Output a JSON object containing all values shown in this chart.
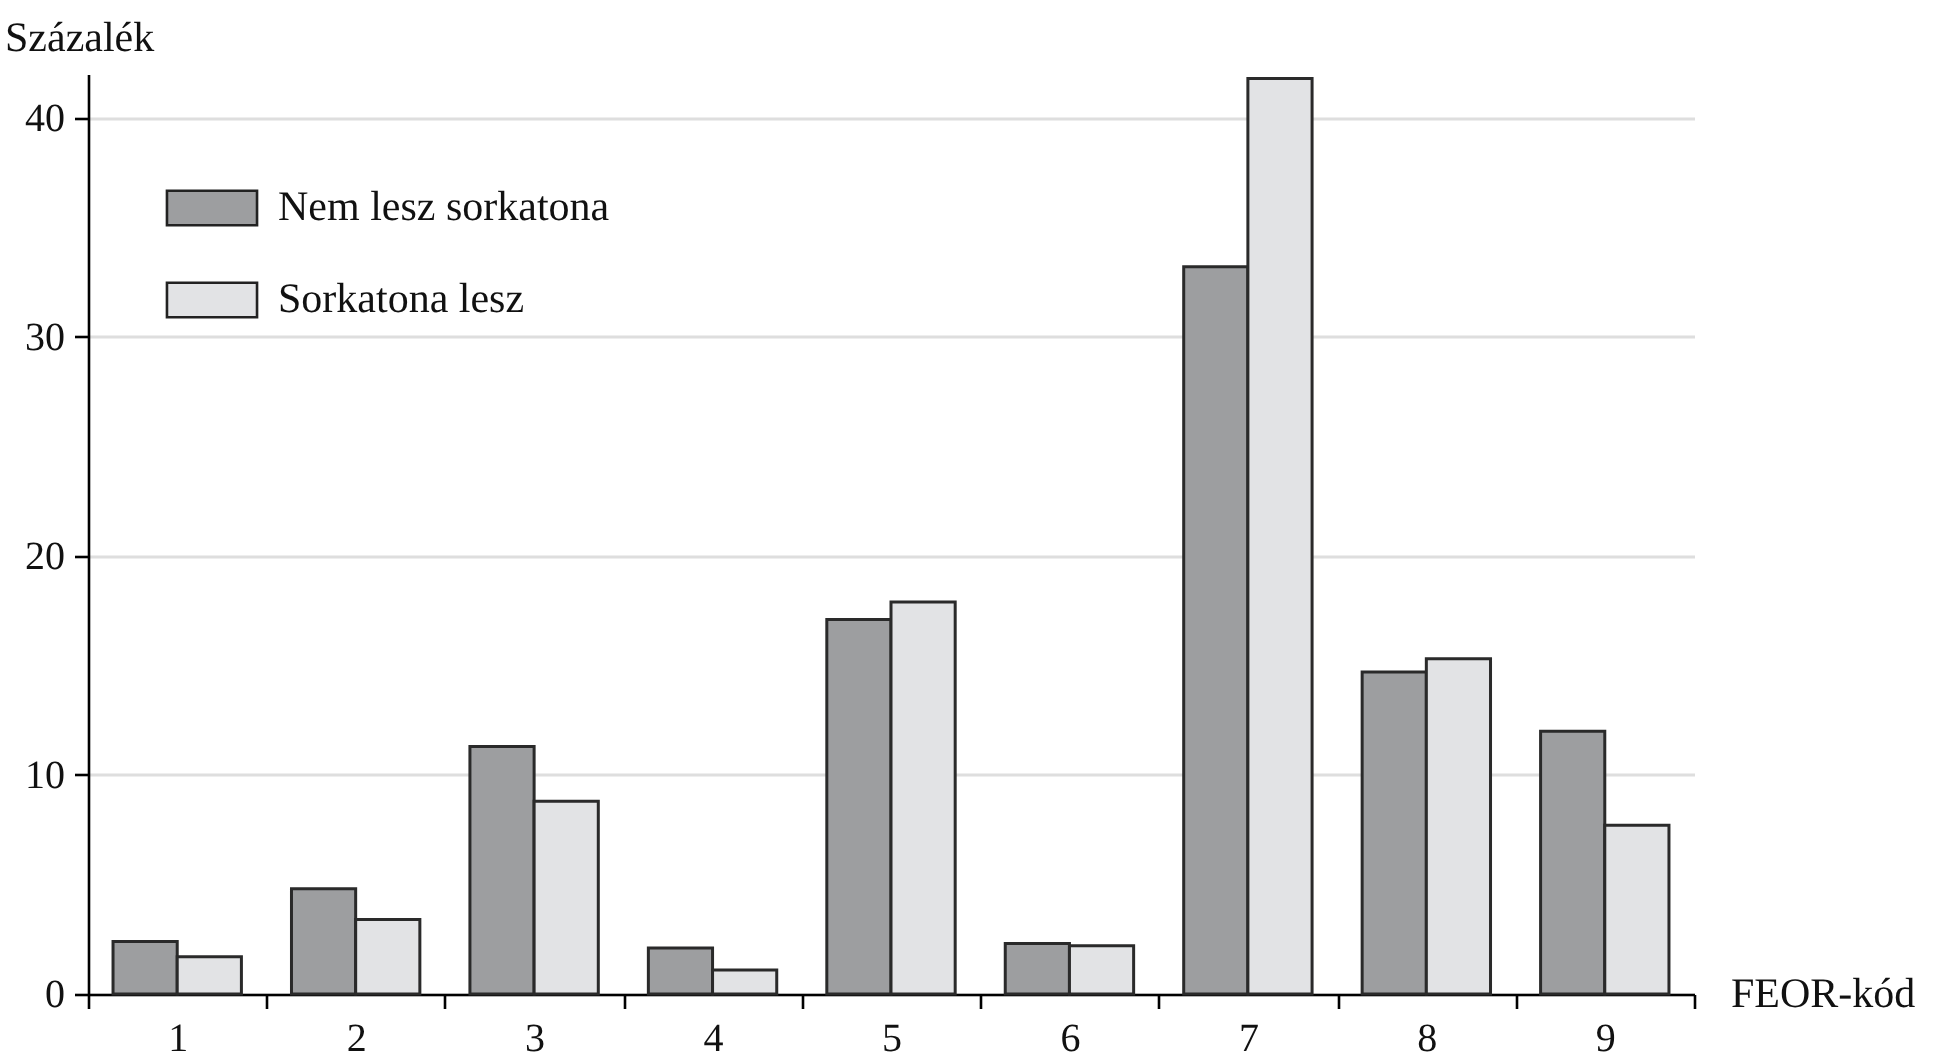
{
  "chart_data": {
    "type": "bar",
    "xlabel": "FEOR-kód",
    "ylabel": "Százalék",
    "categories": [
      "1",
      "2",
      "3",
      "4",
      "5",
      "6",
      "7",
      "8",
      "9"
    ],
    "series": [
      {
        "name": "Nem lesz sorkatona",
        "color": "#9d9ea0",
        "values": [
          2.4,
          4.8,
          11.3,
          2.1,
          17.1,
          2.3,
          33.2,
          14.7,
          12.0
        ]
      },
      {
        "name": "Sorkatona lesz",
        "color": "#e2e3e5",
        "values": [
          1.7,
          3.4,
          8.8,
          1.1,
          17.9,
          2.2,
          41.8,
          15.3,
          7.7
        ]
      }
    ],
    "ylim": [
      0,
      42
    ],
    "yticks": [
      0,
      10,
      20,
      30,
      40
    ],
    "grid": "y",
    "legend": "top left"
  }
}
